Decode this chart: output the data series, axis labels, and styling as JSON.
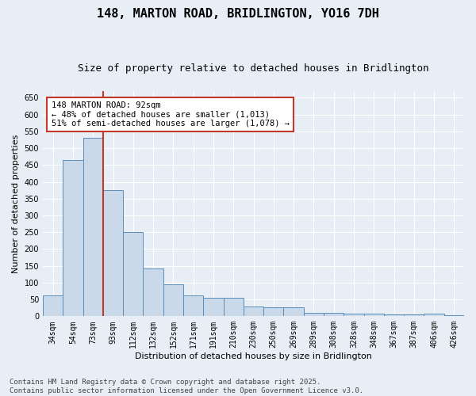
{
  "title1": "148, MARTON ROAD, BRIDLINGTON, YO16 7DH",
  "title2": "Size of property relative to detached houses in Bridlington",
  "xlabel": "Distribution of detached houses by size in Bridlington",
  "ylabel": "Number of detached properties",
  "categories": [
    "34sqm",
    "54sqm",
    "73sqm",
    "93sqm",
    "112sqm",
    "132sqm",
    "152sqm",
    "171sqm",
    "191sqm",
    "210sqm",
    "230sqm",
    "250sqm",
    "269sqm",
    "289sqm",
    "308sqm",
    "328sqm",
    "348sqm",
    "367sqm",
    "387sqm",
    "406sqm",
    "426sqm"
  ],
  "values": [
    62,
    464,
    530,
    375,
    250,
    143,
    94,
    62,
    55,
    54,
    29,
    27,
    27,
    11,
    11,
    7,
    8,
    6,
    5,
    7,
    4
  ],
  "bar_color": "#c9d9ea",
  "bar_edge_color": "#5b8db8",
  "vline_color": "#c0392b",
  "annotation_text": "148 MARTON ROAD: 92sqm\n← 48% of detached houses are smaller (1,013)\n51% of semi-detached houses are larger (1,078) →",
  "annotation_box_color": "#ffffff",
  "annotation_box_edge_color": "#c0392b",
  "ylim": [
    0,
    670
  ],
  "yticks": [
    0,
    50,
    100,
    150,
    200,
    250,
    300,
    350,
    400,
    450,
    500,
    550,
    600,
    650
  ],
  "background_color": "#e8eef5",
  "grid_color": "#ffffff",
  "footer_line1": "Contains HM Land Registry data © Crown copyright and database right 2025.",
  "footer_line2": "Contains public sector information licensed under the Open Government Licence v3.0.",
  "title_fontsize": 11,
  "subtitle_fontsize": 9,
  "axis_label_fontsize": 8,
  "tick_fontsize": 7,
  "footer_fontsize": 6.5,
  "annot_fontsize": 7.5
}
